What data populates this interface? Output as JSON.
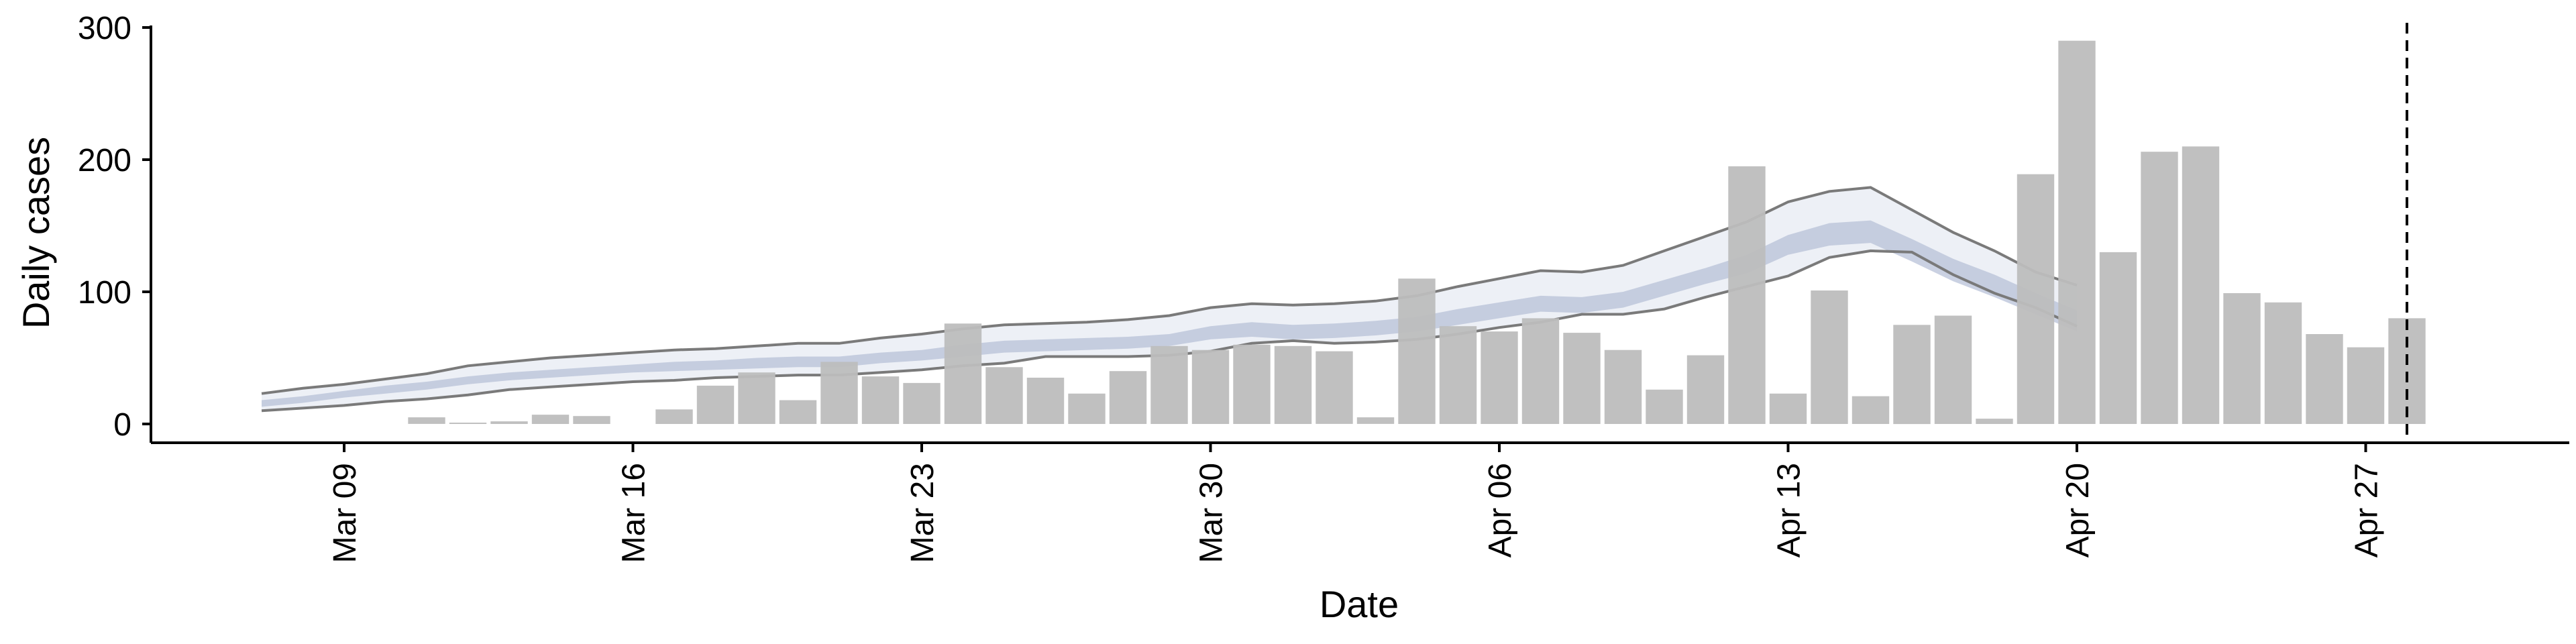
{
  "chart_data": {
    "type": "bar",
    "xlabel": "Date",
    "ylabel": "Daily cases",
    "ylim": [
      0,
      300
    ],
    "y_ticks": [
      0,
      100,
      200,
      300
    ],
    "x_ticks": [
      {
        "date": "2020-03-09",
        "label": "Mar 09"
      },
      {
        "date": "2020-03-16",
        "label": "Mar 16"
      },
      {
        "date": "2020-03-23",
        "label": "Mar 23"
      },
      {
        "date": "2020-03-30",
        "label": "Mar 30"
      },
      {
        "date": "2020-04-06",
        "label": "Apr 06"
      },
      {
        "date": "2020-04-13",
        "label": "Apr 13"
      },
      {
        "date": "2020-04-20",
        "label": "Apr 20"
      },
      {
        "date": "2020-04-27",
        "label": "Apr 27"
      }
    ],
    "grid": false,
    "bar_color": "#bdbdbd",
    "band_outer_color": "#dfe3ee",
    "band_inner_color": "#b3bdd6",
    "band_edge_color": "#7a7a7a",
    "vline_color": "#000000",
    "cases": {
      "dates": [
        "2020-03-11",
        "2020-03-12",
        "2020-03-13",
        "2020-03-14",
        "2020-03-15",
        "2020-03-16",
        "2020-03-17",
        "2020-03-18",
        "2020-03-19",
        "2020-03-20",
        "2020-03-21",
        "2020-03-22",
        "2020-03-23",
        "2020-03-24",
        "2020-03-25",
        "2020-03-26",
        "2020-03-27",
        "2020-03-28",
        "2020-03-29",
        "2020-03-30",
        "2020-03-31",
        "2020-04-01",
        "2020-04-02",
        "2020-04-03",
        "2020-04-04",
        "2020-04-05",
        "2020-04-06",
        "2020-04-07",
        "2020-04-08",
        "2020-04-09",
        "2020-04-10",
        "2020-04-11",
        "2020-04-12",
        "2020-04-13",
        "2020-04-14",
        "2020-04-15",
        "2020-04-16",
        "2020-04-17",
        "2020-04-18",
        "2020-04-19",
        "2020-04-20",
        "2020-04-21",
        "2020-04-22",
        "2020-04-23",
        "2020-04-24",
        "2020-04-25",
        "2020-04-26",
        "2020-04-27",
        "2020-04-28",
        "2020-04-29"
      ],
      "values": [
        5,
        1,
        2,
        7,
        6,
        0,
        11,
        29,
        39,
        18,
        47,
        36,
        31,
        76,
        43,
        35,
        23,
        40,
        59,
        56,
        60,
        59,
        55,
        5,
        110,
        74,
        70,
        80,
        69,
        56,
        26,
        52,
        195,
        23,
        101,
        21,
        75,
        82,
        4,
        189,
        290,
        130,
        206,
        210,
        99,
        92,
        68,
        58,
        80,
        0
      ]
    },
    "estimate_band": {
      "dates": [
        "2020-03-07",
        "2020-03-08",
        "2020-03-09",
        "2020-03-10",
        "2020-03-11",
        "2020-03-12",
        "2020-03-13",
        "2020-03-14",
        "2020-03-15",
        "2020-03-16",
        "2020-03-17",
        "2020-03-18",
        "2020-03-19",
        "2020-03-20",
        "2020-03-21",
        "2020-03-22",
        "2020-03-23",
        "2020-03-24",
        "2020-03-25",
        "2020-03-26",
        "2020-03-27",
        "2020-03-28",
        "2020-03-29",
        "2020-03-30",
        "2020-03-31",
        "2020-04-01",
        "2020-04-02",
        "2020-04-03",
        "2020-04-04",
        "2020-04-05",
        "2020-04-06",
        "2020-04-07",
        "2020-04-08",
        "2020-04-09",
        "2020-04-10",
        "2020-04-11",
        "2020-04-12",
        "2020-04-13",
        "2020-04-14",
        "2020-04-15",
        "2020-04-16",
        "2020-04-17",
        "2020-04-18",
        "2020-04-19",
        "2020-04-20"
      ],
      "upper90": [
        23,
        27,
        30,
        34,
        38,
        44,
        47,
        50,
        52,
        54,
        56,
        57,
        59,
        61,
        61,
        65,
        68,
        72,
        75,
        76,
        77,
        79,
        82,
        88,
        91,
        90,
        91,
        93,
        97,
        104,
        110,
        116,
        115,
        120,
        131,
        142,
        153,
        168,
        176,
        179,
        162,
        145,
        131,
        115,
        105
      ],
      "upper50": [
        18,
        21,
        25,
        29,
        32,
        36,
        39,
        41,
        43,
        45,
        47,
        48,
        50,
        51,
        51,
        54,
        56,
        60,
        63,
        64,
        65,
        66,
        68,
        74,
        77,
        75,
        76,
        78,
        81,
        87,
        92,
        97,
        96,
        100,
        109,
        118,
        128,
        143,
        152,
        154,
        140,
        125,
        113,
        99,
        86
      ],
      "lower50": [
        13,
        16,
        20,
        23,
        26,
        30,
        33,
        35,
        37,
        39,
        40,
        41,
        42,
        43,
        43,
        46,
        48,
        51,
        54,
        55,
        56,
        57,
        59,
        64,
        66,
        64,
        65,
        67,
        70,
        75,
        80,
        85,
        84,
        88,
        97,
        106,
        114,
        128,
        135,
        137,
        123,
        108,
        96,
        83,
        70
      ],
      "lower90": [
        10,
        12,
        14,
        17,
        19,
        22,
        26,
        28,
        30,
        32,
        33,
        35,
        36,
        37,
        37,
        39,
        41,
        44,
        46,
        51,
        51,
        51,
        52,
        55,
        61,
        63,
        61,
        62,
        64,
        68,
        73,
        77,
        83,
        83,
        87,
        96,
        104,
        112,
        126,
        131,
        130,
        113,
        99,
        88,
        74
      ]
    },
    "forecast_date": "2020-04-28"
  }
}
